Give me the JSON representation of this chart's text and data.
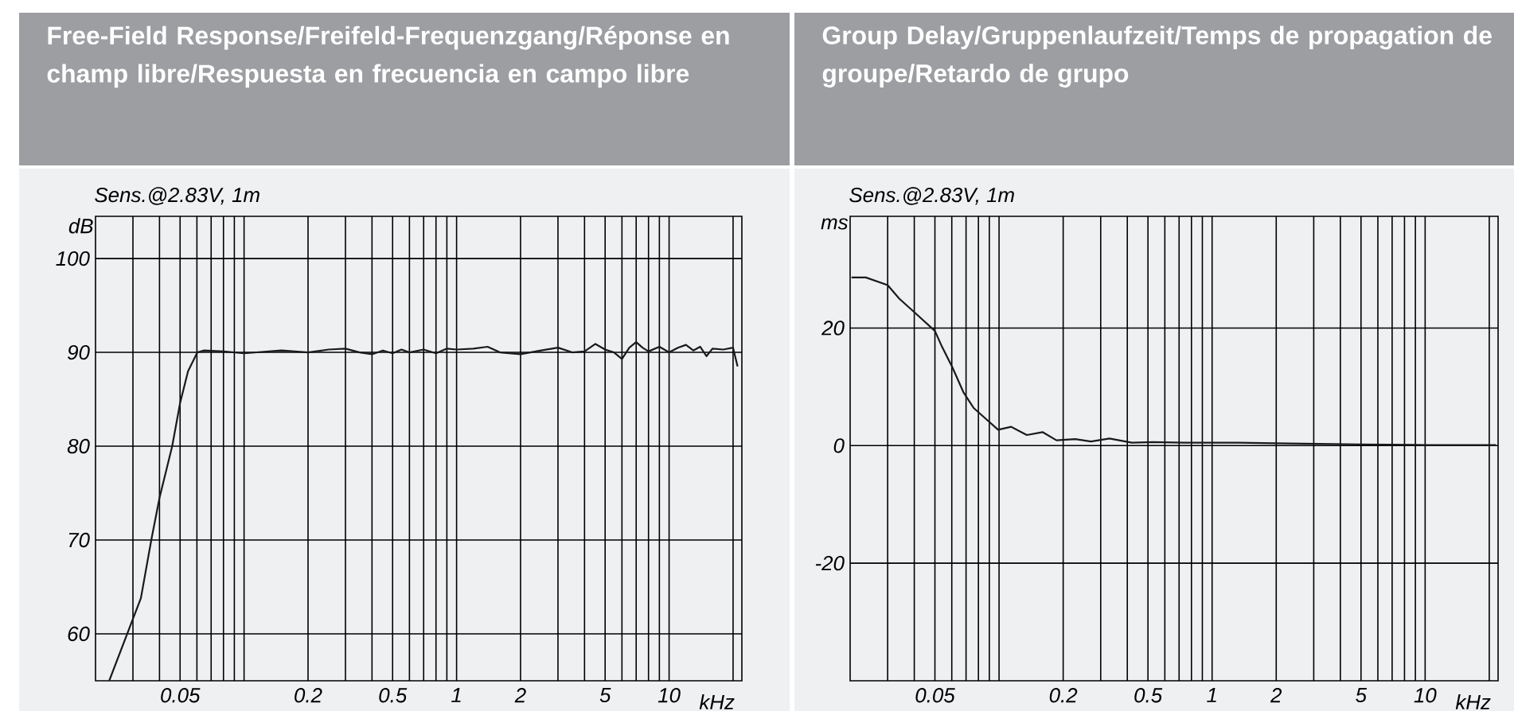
{
  "chart_data": [
    {
      "type": "line",
      "title": "Free-Field Response/Freifeld-Frequenzgang/Réponse en champ libre/Respuesta en frecuencia en campo libre",
      "subtitle": "Sens.@2.83V, 1m",
      "xlabel": "kHz",
      "ylabel": "dB",
      "log": "x",
      "grid": true,
      "color": "#1a1a1a",
      "x": [
        0.0232,
        0.03,
        0.0327,
        0.0366,
        0.04,
        0.0459,
        0.05,
        0.0545,
        0.0603,
        0.0645,
        0.08,
        0.1,
        0.15,
        0.2,
        0.25,
        0.3,
        0.35,
        0.4,
        0.45,
        0.5,
        0.55,
        0.6,
        0.7,
        0.8,
        0.9,
        1.0,
        1.2,
        1.4,
        1.6,
        2.0,
        2.5,
        3.0,
        3.5,
        4.0,
        4.5,
        5.0,
        5.5,
        6.0,
        6.5,
        7.0,
        7.5,
        8.0,
        9.0,
        10,
        11,
        12,
        13,
        14,
        15,
        16,
        18,
        20,
        21
      ],
      "values": [
        55,
        61.6,
        63.8,
        70,
        74.5,
        80,
        84.6,
        88,
        90,
        90.2,
        90.1,
        89.9,
        90.2,
        90.0,
        90.3,
        90.4,
        90.0,
        89.8,
        90.2,
        89.9,
        90.3,
        90.0,
        90.3,
        89.9,
        90.4,
        90.3,
        90.4,
        90.6,
        90.0,
        89.8,
        90.2,
        90.5,
        90.0,
        90.1,
        90.9,
        90.3,
        90.0,
        89.3,
        90.5,
        91.1,
        90.5,
        90.1,
        90.6,
        90.0,
        90.5,
        90.8,
        90.2,
        90.6,
        89.6,
        90.4,
        90.3,
        90.5,
        88.5
      ],
      "xlim": [
        0.02,
        22
      ],
      "ylim": [
        55,
        104.5
      ],
      "xticks": [
        {
          "value": 0.03,
          "label": null
        },
        {
          "value": 0.04,
          "label": null
        },
        {
          "value": 0.05,
          "label": "0.05"
        },
        {
          "value": 0.06,
          "label": null
        },
        {
          "value": 0.07,
          "label": null
        },
        {
          "value": 0.08,
          "label": null
        },
        {
          "value": 0.09,
          "label": null
        },
        {
          "value": 0.1,
          "label": null
        },
        {
          "value": 0.2,
          "label": "0.2"
        },
        {
          "value": 0.3,
          "label": null
        },
        {
          "value": 0.4,
          "label": null
        },
        {
          "value": 0.5,
          "label": "0.5"
        },
        {
          "value": 0.6,
          "label": null
        },
        {
          "value": 0.7,
          "label": null
        },
        {
          "value": 0.8,
          "label": null
        },
        {
          "value": 0.9,
          "label": null
        },
        {
          "value": 1,
          "label": "1"
        },
        {
          "value": 2,
          "label": "2"
        },
        {
          "value": 3,
          "label": null
        },
        {
          "value": 4,
          "label": null
        },
        {
          "value": 5,
          "label": "5"
        },
        {
          "value": 6,
          "label": null
        },
        {
          "value": 7,
          "label": null
        },
        {
          "value": 8,
          "label": null
        },
        {
          "value": 9,
          "label": null
        },
        {
          "value": 10,
          "label": "10"
        },
        {
          "value": 20,
          "label": null
        }
      ],
      "yticks": [
        60,
        70,
        80,
        90,
        100
      ]
    },
    {
      "type": "line",
      "title": "Group Delay/Gruppenlaufzeit/Temps de propagation de groupe/Retardo de grupo",
      "subtitle": "Sens.@2.83V, 1m",
      "xlabel": "kHz",
      "ylabel": "ms",
      "log": "x",
      "grid": true,
      "color": "#1a1a1a",
      "x": [
        0.0203,
        0.0237,
        0.03,
        0.034,
        0.04,
        0.05,
        0.054,
        0.0606,
        0.068,
        0.076,
        0.087,
        0.099,
        0.114,
        0.135,
        0.16,
        0.186,
        0.228,
        0.27,
        0.33,
        0.42,
        0.53,
        0.74,
        1.33,
        2,
        5,
        10,
        20,
        21.5
      ],
      "values": [
        28.6,
        28.6,
        27.3,
        25.0,
        22.7,
        19.5,
        16.8,
        13.2,
        9.1,
        6.4,
        4.5,
        2.7,
        3.2,
        1.8,
        2.3,
        0.9,
        1.1,
        0.7,
        1.2,
        0.5,
        0.6,
        0.5,
        0.5,
        0.4,
        0.2,
        0.1,
        0.1,
        0.1
      ],
      "xlim": [
        0.02,
        22
      ],
      "ylim": [
        -40,
        39
      ],
      "xticks": [
        {
          "value": 0.03,
          "label": null
        },
        {
          "value": 0.04,
          "label": null
        },
        {
          "value": 0.05,
          "label": "0.05"
        },
        {
          "value": 0.06,
          "label": null
        },
        {
          "value": 0.07,
          "label": null
        },
        {
          "value": 0.08,
          "label": null
        },
        {
          "value": 0.09,
          "label": null
        },
        {
          "value": 0.1,
          "label": null
        },
        {
          "value": 0.2,
          "label": "0.2"
        },
        {
          "value": 0.3,
          "label": null
        },
        {
          "value": 0.4,
          "label": null
        },
        {
          "value": 0.5,
          "label": "0.5"
        },
        {
          "value": 0.6,
          "label": null
        },
        {
          "value": 0.7,
          "label": null
        },
        {
          "value": 0.8,
          "label": null
        },
        {
          "value": 0.9,
          "label": null
        },
        {
          "value": 1,
          "label": "1"
        },
        {
          "value": 2,
          "label": "2"
        },
        {
          "value": 3,
          "label": null
        },
        {
          "value": 4,
          "label": null
        },
        {
          "value": 5,
          "label": "5"
        },
        {
          "value": 6,
          "label": null
        },
        {
          "value": 7,
          "label": null
        },
        {
          "value": 8,
          "label": null
        },
        {
          "value": 9,
          "label": null
        },
        {
          "value": 10,
          "label": "10"
        },
        {
          "value": 20,
          "label": null
        }
      ],
      "yticks": [
        -20,
        0,
        20
      ]
    }
  ]
}
